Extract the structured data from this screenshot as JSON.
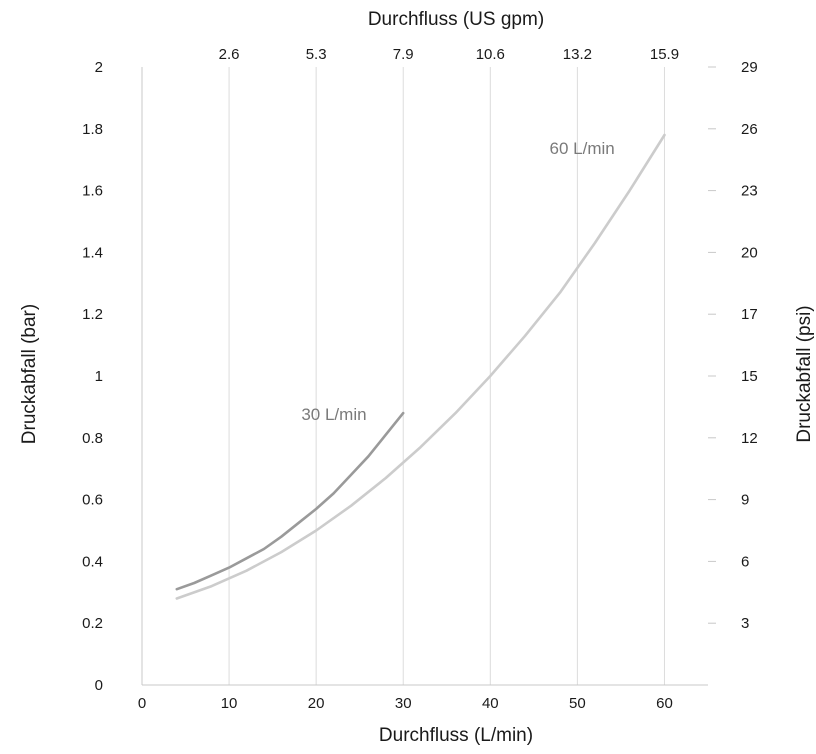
{
  "chart_data": {
    "type": "line",
    "title": "",
    "xlabel": "Durchfluss (L/min)",
    "x_ticks": [
      "0",
      "10",
      "20",
      "30",
      "40",
      "50",
      "60"
    ],
    "xlim": [
      0,
      65
    ],
    "x2label": "Durchfluss (US gpm)",
    "x2_ticks": [
      {
        "at": 10,
        "label": "2.6"
      },
      {
        "at": 20,
        "label": "5.3"
      },
      {
        "at": 30,
        "label": "7.9"
      },
      {
        "at": 40,
        "label": "10.6"
      },
      {
        "at": 50,
        "label": "13.2"
      },
      {
        "at": 60,
        "label": "15.9"
      }
    ],
    "ylabel": "Druckabfall (bar)",
    "y_ticks": [
      "0",
      "0.2",
      "0.4",
      "0.6",
      "0.8",
      "1",
      "1.2",
      "1.4",
      "1.6",
      "1.8",
      "2"
    ],
    "ylim": [
      0,
      2
    ],
    "y2label": "Druckabfall (psi)",
    "y2_ticks": [
      {
        "at": 0.2,
        "label": "3"
      },
      {
        "at": 0.4,
        "label": "6"
      },
      {
        "at": 0.6,
        "label": "9"
      },
      {
        "at": 0.8,
        "label": "12"
      },
      {
        "at": 1.0,
        "label": "15"
      },
      {
        "at": 1.2,
        "label": "17"
      },
      {
        "at": 1.4,
        "label": "20"
      },
      {
        "at": 1.6,
        "label": "23"
      },
      {
        "at": 1.8,
        "label": "26"
      },
      {
        "at": 2.0,
        "label": "29"
      }
    ],
    "grid": "vertical",
    "series": [
      {
        "name": "30 L/min",
        "color": "#9a9a9a",
        "x": [
          4,
          6,
          8,
          10,
          12,
          14,
          16,
          18,
          20,
          22,
          24,
          26,
          28,
          30
        ],
        "y": [
          0.31,
          0.33,
          0.355,
          0.38,
          0.41,
          0.44,
          0.48,
          0.525,
          0.57,
          0.62,
          0.68,
          0.74,
          0.81,
          0.88
        ]
      },
      {
        "name": "60 L/min",
        "color": "#cccccc",
        "x": [
          4,
          8,
          12,
          16,
          20,
          24,
          28,
          32,
          36,
          40,
          44,
          48,
          52,
          56,
          60
        ],
        "y": [
          0.28,
          0.32,
          0.37,
          0.43,
          0.5,
          0.58,
          0.67,
          0.77,
          0.88,
          1.0,
          1.13,
          1.27,
          1.43,
          1.6,
          1.78
        ]
      }
    ]
  }
}
